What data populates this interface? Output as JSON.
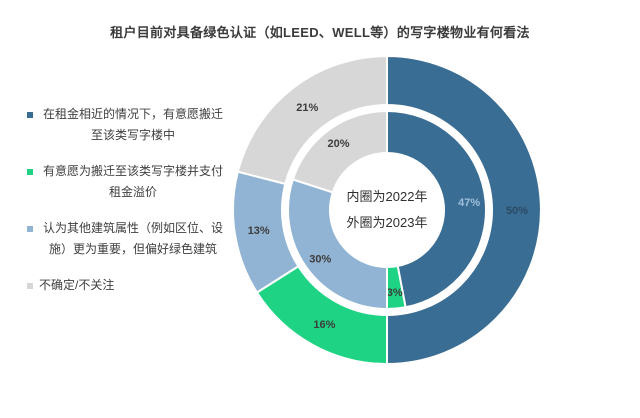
{
  "chart_data": {
    "type": "donut",
    "title": "租户目前对具备绿色认证（如LEED、WELL等）的写字楼物业有何看法",
    "center_note": [
      "内圈为2022年",
      "外圈为2023年"
    ],
    "categories": [
      "在租金相近的情况下，有意愿搬迁至该类写字楼中",
      "有意愿为搬迁至该类写字楼并支付租金溢价",
      "认为其他建筑属性（例如区位、设施）更为重要，但偏好绿色建筑",
      "不确定/不关注"
    ],
    "colors": [
      "#3a6d94",
      "#1ed383",
      "#92b4d4",
      "#d7d7d7"
    ],
    "direction": "clockwise",
    "start_angle_deg": 0,
    "legend_position": "left",
    "series": [
      {
        "name": "2023年",
        "ring": "outer",
        "values": [
          50,
          16,
          13,
          21
        ],
        "labels": [
          "50%",
          "16%",
          "13%",
          "21%"
        ],
        "label_colors": [
          "#2b4a63",
          "#3c3c3c",
          "#3c3c3c",
          "#3c3c3c"
        ]
      },
      {
        "name": "2022年",
        "ring": "inner",
        "values": [
          47,
          3,
          30,
          20
        ],
        "labels": [
          "47%",
          "3%",
          "30%",
          "20%"
        ],
        "label_colors": [
          "#9fc0db",
          "#3c3c3c",
          "#3c3c3c",
          "#3c3c3c"
        ]
      }
    ]
  },
  "legend": {
    "items": [
      {
        "label": "在租金相近的情况下，有意愿搬迁至该类写字楼中",
        "color": "#3a6d94"
      },
      {
        "label": "有意愿为搬迁至该类写字楼并支付租金溢价",
        "color": "#1ed383"
      },
      {
        "label": "认为其他建筑属性（例如区位、设施）更为重要，但偏好绿色建筑",
        "color": "#92b4d4"
      },
      {
        "label": "不确定/不关注",
        "color": "#d7d7d7"
      }
    ]
  }
}
